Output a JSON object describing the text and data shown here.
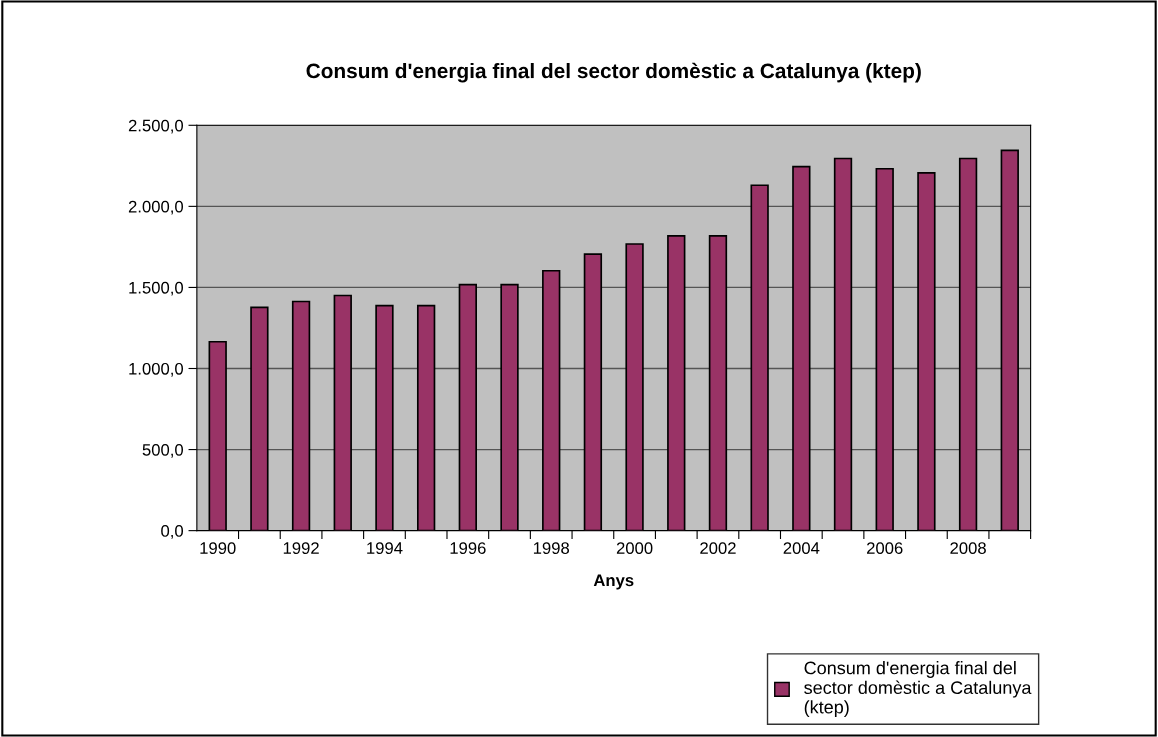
{
  "chart_data": {
    "type": "bar",
    "title": "Consum d'energia final del sector domèstic a Catalunya (ktep)",
    "xlabel": "Anys",
    "categories": [
      "1990",
      null,
      "1992",
      null,
      "1994",
      null,
      "1996",
      null,
      "1998",
      null,
      "2000",
      null,
      "2002",
      null,
      "2004",
      null,
      "2006",
      null,
      "2008",
      null
    ],
    "series": [
      {
        "name": "Consum d'energia final del sector domèstic a Catalunya (ktep)",
        "color": "#993366",
        "values": [
          1165,
          1377,
          1413,
          1450,
          1388,
          1388,
          1517,
          1517,
          1603,
          1705,
          1768,
          1818,
          1818,
          2130,
          2245,
          2295,
          2232,
          2207,
          2295,
          2345
        ]
      }
    ],
    "ylim": [
      0,
      2500
    ],
    "yticks": [
      {
        "value": 0,
        "label": "0,0"
      },
      {
        "value": 500,
        "label": "500,0"
      },
      {
        "value": 1000,
        "label": "1.000,0"
      },
      {
        "value": 1500,
        "label": "1.500,0"
      },
      {
        "value": 2000,
        "label": "2.000,0"
      },
      {
        "value": 2500,
        "label": "2.500,0"
      }
    ],
    "grid": "y",
    "legend": "bottom right"
  }
}
